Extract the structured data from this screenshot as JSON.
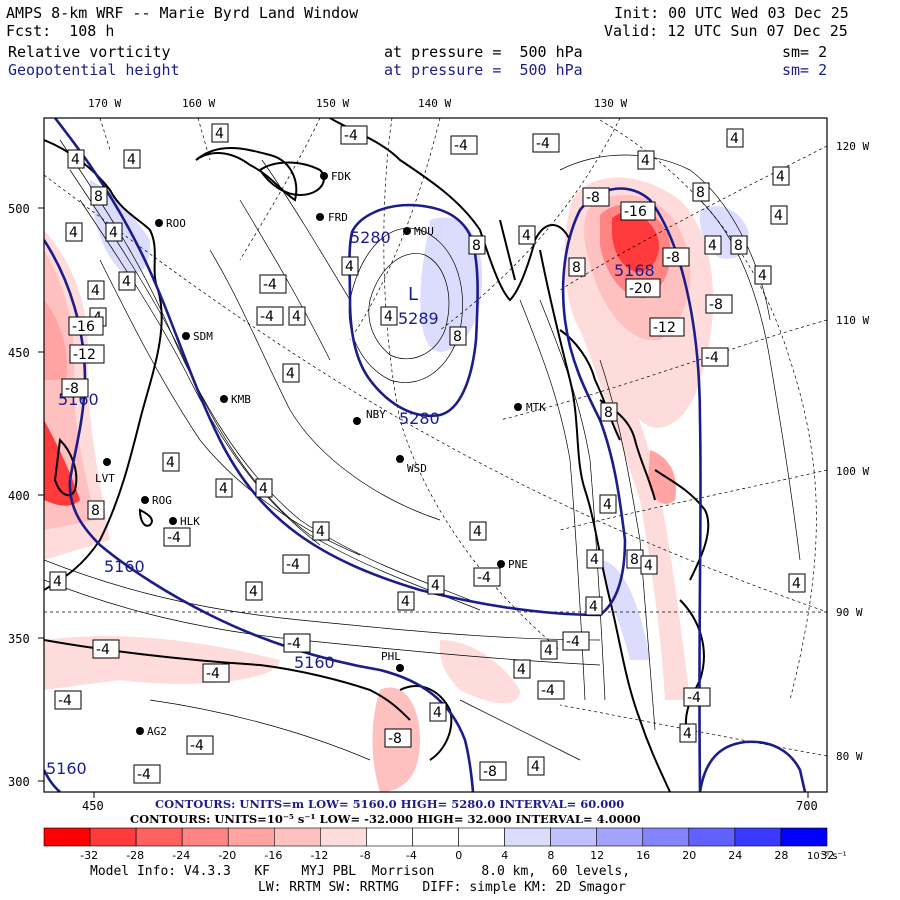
{
  "header": {
    "title": "AMPS 8-km WRF -- Marie Byrd Land Window",
    "fcst": "Fcst:  108 h",
    "init": "Init: 00 UTC Wed 03 Dec 25",
    "valid": "Valid: 12 UTC Sun 07 Dec 25",
    "field1_name": "Relative vorticity",
    "field1_level": "at pressure =  500 hPa",
    "field1_sm": "sm= 2",
    "field2_name": "Geopotential height",
    "field2_level": "at pressure =  500 hPa",
    "field2_sm": "sm= 2"
  },
  "axes": {
    "top_lon": [
      "170 W",
      "160 W",
      "150 W",
      "140 W",
      "130 W"
    ],
    "right_lon": [
      "120 W",
      "110 W",
      "100 W",
      "90 W",
      "80 W"
    ],
    "left_y": [
      "500",
      "450",
      "400",
      "350",
      "300"
    ],
    "bottom_x": [
      "450",
      "700"
    ]
  },
  "stations": [
    "ROO",
    "SDM",
    "KMB",
    "LVT",
    "ROG",
    "HLK",
    "AG2",
    "FDK",
    "FRD",
    "MOU",
    "NBY",
    "WSD",
    "MTK",
    "PNE",
    "PHL"
  ],
  "height_labels": [
    "5280",
    "5289",
    "5280",
    "5160",
    "5160",
    "5168",
    "5160",
    "5160"
  ],
  "vort_labels": [
    "4",
    "8",
    "-4",
    "-8",
    "-12",
    "-16",
    "-20",
    "L"
  ],
  "contours": {
    "blue_line": "CONTOURS:  UNITS=m   LOW=  5160.0       HIGH=  5280.0         INTERVAL=  60.000",
    "black_line": "CONTOURS:  UNITS=10⁻⁵ s⁻¹  LOW= -32.000       HIGH=  32.000       INTERVAL=   4.0000"
  },
  "colorbar": {
    "ticks": [
      "-32",
      "-28",
      "-24",
      "-20",
      "-16",
      "-12",
      "-8",
      "-4",
      "0",
      "4",
      "8",
      "12",
      "16",
      "20",
      "24",
      "28",
      "32"
    ],
    "unit": "10⁻⁵ s⁻¹",
    "colors": [
      "#ff0000",
      "#ff3a3a",
      "#ff6161",
      "#ff8484",
      "#ffa3a3",
      "#ffc0c0",
      "#ffdcdc",
      "#ffffff",
      "#ffffff",
      "#ffffff",
      "#dcdcff",
      "#c0c0ff",
      "#a3a3ff",
      "#8484ff",
      "#6161ff",
      "#3a3aff",
      "#0000ff"
    ]
  },
  "footer": {
    "line1": "Model Info: V4.3.3   KF    MYJ PBL  Morrison      8.0 km,  60 levels,",
    "line2": "LW: RRTM SW: RRTMG   DIFF: simple KM: 2D Smagor"
  }
}
